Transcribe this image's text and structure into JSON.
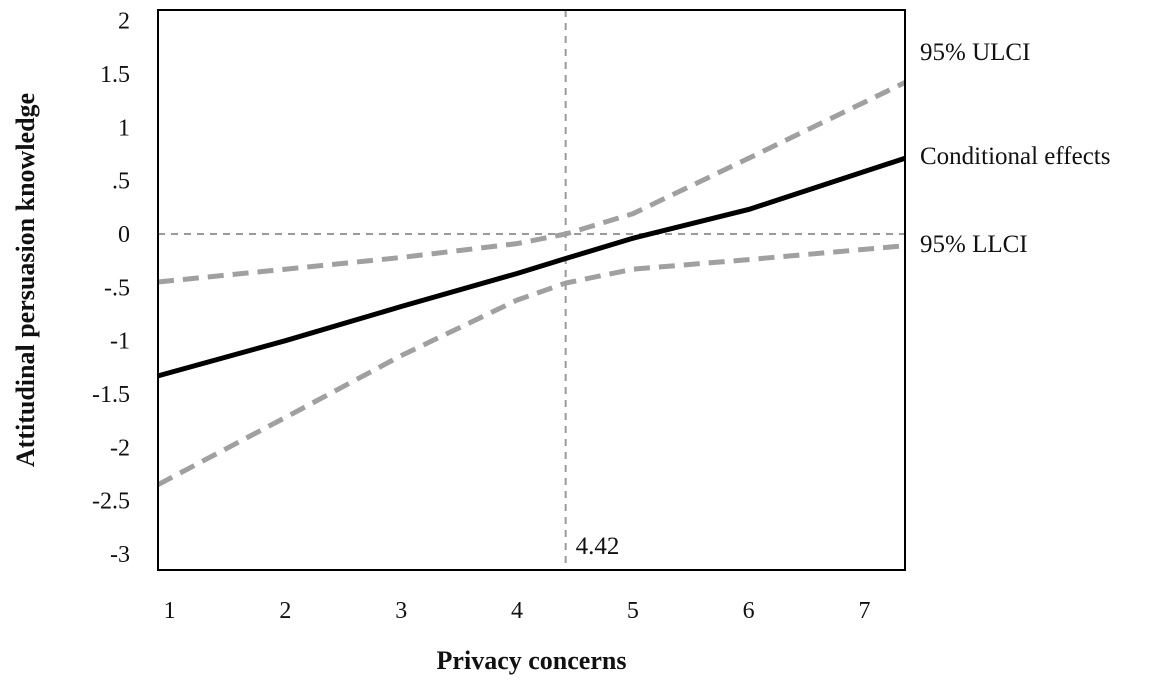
{
  "chart_data": {
    "type": "line",
    "title": "",
    "xlabel": "Privacy concerns",
    "ylabel": "Attitudinal persuasion knowledge",
    "xlim": [
      0.9,
      7.35
    ],
    "ylim": [
      -3.15,
      2.1
    ],
    "xticks": [
      1,
      2,
      3,
      4,
      5,
      6,
      7
    ],
    "xtick_labels": [
      "1",
      "2",
      "3",
      "4",
      "5",
      "6",
      "7"
    ],
    "yticks": [
      2,
      1.5,
      1,
      0.5,
      0,
      -0.5,
      -1,
      -1.5,
      -2,
      -2.5,
      -3
    ],
    "ytick_labels": [
      "2",
      "1.5",
      "1",
      ".5",
      "0",
      "-.5",
      "-1",
      "-1.5",
      "-2",
      "-2.5",
      "-3"
    ],
    "grid": false,
    "reference_lines": {
      "horizontal_y": 0,
      "vertical_x": 4.42,
      "vertical_label": "4.42"
    },
    "series": [
      {
        "name": "95% ULCI",
        "style": "dashed",
        "color": "#a0a0a0",
        "x": [
          0.9,
          2,
          3,
          4,
          4.42,
          5,
          6,
          7.35
        ],
        "y": [
          -0.45,
          -0.33,
          -0.22,
          -0.09,
          0.0,
          0.19,
          0.71,
          1.42
        ]
      },
      {
        "name": "Conditional effects",
        "style": "solid",
        "color": "#000000",
        "x": [
          0.9,
          2,
          3,
          4,
          4.42,
          5,
          6,
          7.35
        ],
        "y": [
          -1.33,
          -1.0,
          -0.68,
          -0.37,
          -0.23,
          -0.04,
          0.23,
          0.71
        ]
      },
      {
        "name": "95% LLCI",
        "style": "dashed",
        "color": "#a0a0a0",
        "x": [
          0.9,
          2,
          3,
          4,
          4.42,
          5,
          6,
          7.35
        ],
        "y": [
          -2.35,
          -1.72,
          -1.14,
          -0.62,
          -0.46,
          -0.33,
          -0.24,
          -0.11
        ]
      }
    ]
  }
}
